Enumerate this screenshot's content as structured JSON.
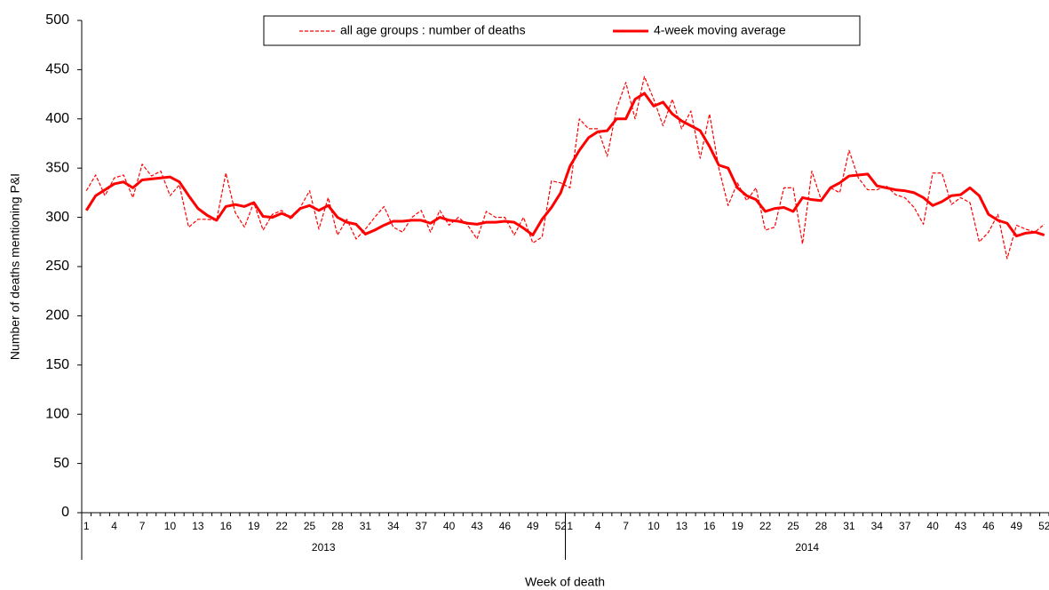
{
  "chart_data": {
    "type": "line",
    "y_label": "Number of deaths mentioning P&I",
    "x_label": "Week of death",
    "categories": [
      "1",
      null,
      null,
      "4",
      null,
      null,
      "7",
      null,
      null,
      "10",
      null,
      null,
      "13",
      null,
      null,
      "16",
      null,
      null,
      "19",
      null,
      null,
      "22",
      null,
      null,
      "25",
      null,
      null,
      "28",
      null,
      null,
      "31",
      null,
      null,
      "34",
      null,
      null,
      "37",
      null,
      null,
      "40",
      null,
      null,
      "43",
      null,
      null,
      "46",
      null,
      null,
      "49",
      null,
      null,
      "52",
      "1",
      null,
      null,
      "4",
      null,
      null,
      "7",
      null,
      null,
      "10",
      null,
      null,
      "13",
      null,
      null,
      "16",
      null,
      null,
      "19",
      null,
      null,
      "22",
      null,
      null,
      "25",
      null,
      null,
      "28",
      null,
      null,
      "31",
      null,
      null,
      "34",
      null,
      null,
      "37",
      null,
      null,
      "40",
      null,
      null,
      "43",
      null,
      null,
      "46",
      null,
      null,
      "49",
      null,
      null,
      "52"
    ],
    "groups": [
      "2013",
      "2014"
    ],
    "series": [
      {
        "name": "all age groups : number of deaths",
        "color": "#ff0000",
        "style": "dashed",
        "values": [
          327,
          343,
          322,
          340,
          343,
          320,
          354,
          342,
          347,
          322,
          333,
          290,
          298,
          298,
          297,
          345,
          305,
          290,
          315,
          287,
          303,
          307,
          298,
          310,
          327,
          288,
          320,
          282,
          298,
          278,
          288,
          300,
          311,
          290,
          285,
          300,
          307,
          285,
          307,
          292,
          300,
          292,
          278,
          306,
          300,
          300,
          282,
          300,
          274,
          280,
          337,
          335,
          330,
          400,
          390,
          390,
          362,
          410,
          437,
          400,
          443,
          420,
          393,
          420,
          390,
          408,
          360,
          405,
          350,
          312,
          335,
          317,
          330,
          287,
          290,
          330,
          330,
          273,
          347,
          318,
          330,
          325,
          368,
          340,
          328,
          328,
          332,
          323,
          320,
          310,
          293,
          345,
          345,
          313,
          320,
          315,
          275,
          285,
          303,
          258,
          292,
          288,
          285,
          293
        ]
      },
      {
        "name": "4-week moving average",
        "color": "#ff0000",
        "style": "solid",
        "values": [
          307,
          322,
          328,
          334,
          336,
          330,
          338,
          339,
          340,
          341,
          336,
          322,
          309,
          302,
          297,
          311,
          313,
          311,
          315,
          301,
          300,
          304,
          300,
          309,
          312,
          307,
          312,
          300,
          295,
          293,
          283,
          287,
          292,
          296,
          296,
          297,
          297,
          294,
          300,
          297,
          296,
          294,
          293,
          295,
          295,
          296,
          295,
          289,
          282,
          298,
          310,
          325,
          352,
          368,
          381,
          387,
          388,
          400,
          400,
          420,
          426,
          413,
          417,
          405,
          398,
          393,
          388,
          372,
          353,
          350,
          330,
          322,
          318,
          306,
          309,
          310,
          306,
          320,
          318,
          317,
          330,
          335,
          342,
          343,
          344,
          332,
          330,
          328,
          327,
          325,
          320,
          312,
          316,
          322,
          323,
          330,
          322,
          303,
          297,
          294,
          281,
          284,
          285,
          282
        ]
      }
    ],
    "ylim": [
      0,
      500
    ],
    "yticks": [
      0,
      50,
      100,
      150,
      200,
      250,
      300,
      350,
      400,
      450,
      500
    ],
    "grid": false,
    "legend": "top"
  }
}
